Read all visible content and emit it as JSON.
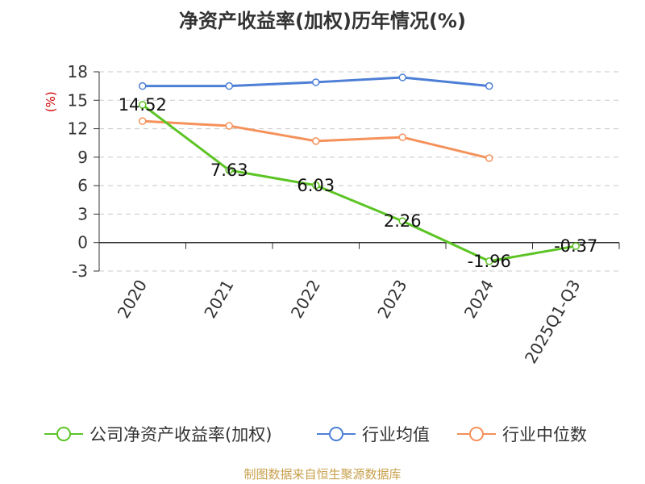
{
  "chart_data": {
    "type": "line",
    "title": "净资产收益率(加权)历年情况(%)",
    "ylabel": "(%)",
    "xlabel": "",
    "categories": [
      "2020",
      "2021",
      "2022",
      "2023",
      "2024",
      "2025Q1-Q3"
    ],
    "ylim": [
      -3,
      18
    ],
    "yticks": [
      -3,
      0,
      3,
      6,
      9,
      12,
      15,
      18
    ],
    "series": [
      {
        "name": "公司净资产收益率(加权)",
        "color": "#5cc425",
        "values": [
          14.52,
          7.63,
          6.03,
          2.26,
          -1.96,
          -0.37
        ],
        "labels": [
          "14.52",
          "7.63",
          "6.03",
          "2.26",
          "-1.96",
          "-0.37"
        ]
      },
      {
        "name": "行业均值",
        "color": "#4d7fd6",
        "values": [
          16.5,
          16.5,
          16.9,
          17.4,
          16.5,
          null
        ]
      },
      {
        "name": "行业中位数",
        "color": "#f5915a",
        "values": [
          12.8,
          12.3,
          10.7,
          11.1,
          8.9,
          null
        ]
      }
    ],
    "grid": true,
    "legend_position": "bottom",
    "source": "制图数据来自恒生聚源数据库"
  }
}
